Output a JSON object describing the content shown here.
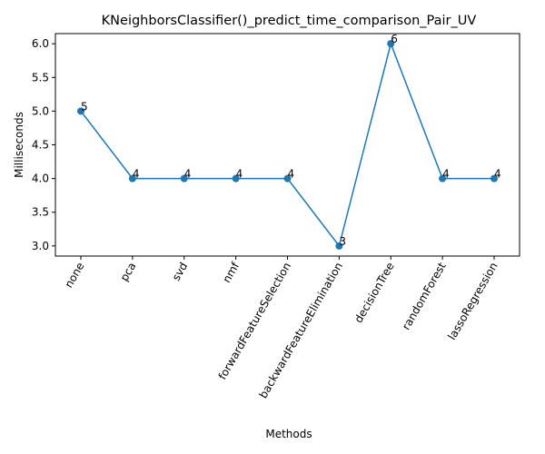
{
  "chart_data": {
    "type": "line",
    "title": "KNeighborsClassifier()_predict_time_comparison_Pair_UV",
    "xlabel": "Methods",
    "ylabel": "Milliseconds",
    "categories": [
      "none",
      "pca",
      "svd",
      "nmf",
      "forwardFeatureSelection",
      "backwardFeatureElimination",
      "decisionTree",
      "randomForest",
      "lassoRegression"
    ],
    "series": [
      {
        "values": [
          5,
          4,
          4,
          4,
          4,
          3,
          6,
          4,
          4
        ]
      }
    ],
    "data_labels": [
      "5",
      "4",
      "4",
      "4",
      "4",
      "3",
      "6",
      "4",
      "4"
    ],
    "ylim": [
      2.85,
      6.15
    ],
    "yticks": [
      3.0,
      3.5,
      4.0,
      4.5,
      5.0,
      5.5,
      6.0
    ],
    "ytick_labels": [
      "3.0",
      "3.5",
      "4.0",
      "4.5",
      "5.0",
      "5.5",
      "6.0"
    ],
    "grid": false,
    "legend": "none",
    "colors": {
      "line": "#1f77b4",
      "marker": "#1f77b4",
      "text": "#000000"
    }
  }
}
